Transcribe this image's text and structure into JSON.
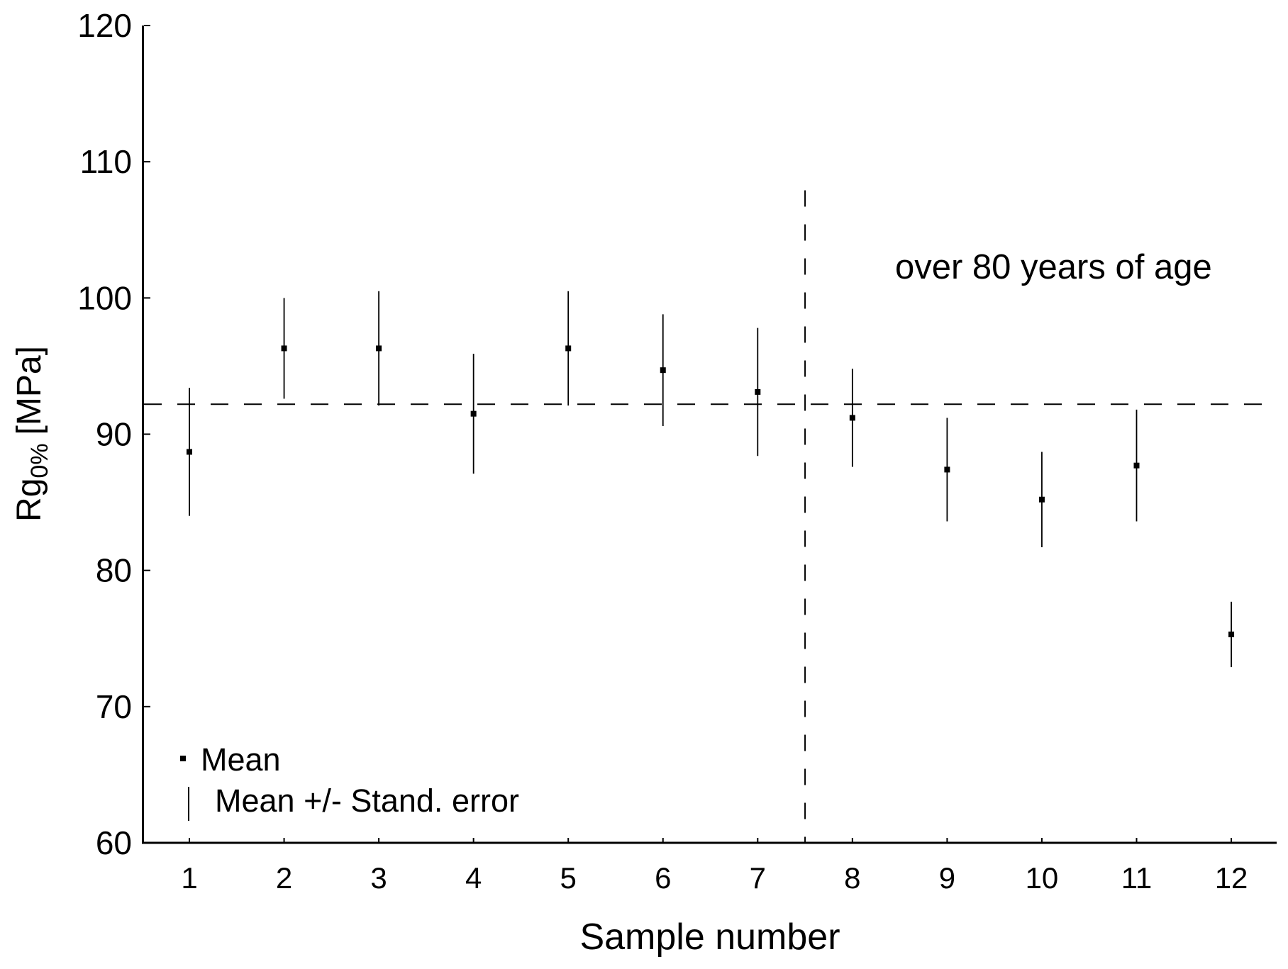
{
  "chart_data": {
    "type": "scatter",
    "subtype": "mean-with-error-bars",
    "title": "",
    "xlabel": "Sample number",
    "ylabel": "Rg0% [MPa]",
    "ylabel_parts": {
      "base": "Rg",
      "sub": "0%",
      "unit": "[MPa]"
    },
    "categories": [
      1,
      2,
      3,
      4,
      5,
      6,
      7,
      8,
      9,
      10,
      11,
      12
    ],
    "series": [
      {
        "name": "Mean",
        "x": [
          1,
          2,
          3,
          4,
          5,
          6,
          7,
          8,
          9,
          10,
          11,
          12
        ],
        "means": [
          88.7,
          96.3,
          96.3,
          91.5,
          96.3,
          94.7,
          93.1,
          91.2,
          87.4,
          85.2,
          87.7,
          75.3
        ],
        "std_errors": [
          4.7,
          3.7,
          4.2,
          4.4,
          4.2,
          4.1,
          4.7,
          3.6,
          3.8,
          3.5,
          4.1,
          2.4
        ]
      }
    ],
    "ylim": [
      60,
      120
    ],
    "yticks": [
      60,
      70,
      80,
      90,
      100,
      110,
      120
    ],
    "xticks": [
      1,
      2,
      3,
      4,
      5,
      6,
      7,
      8,
      9,
      10,
      11,
      12
    ],
    "grid": false,
    "marker": "square",
    "colors": {
      "foreground": "#000000",
      "background": "#ffffff"
    },
    "reference_lines": [
      {
        "orientation": "horizontal",
        "value": 92.2,
        "style": "dashed"
      },
      {
        "orientation": "vertical",
        "value": 7.5,
        "top_value": 107.9,
        "style": "dashed"
      }
    ],
    "annotation": {
      "text": "over 80 years of age"
    },
    "legend": {
      "position": "bottom-left-inside",
      "mean_label": "Mean",
      "stderr_label": "Mean +/- Stand. error"
    }
  }
}
